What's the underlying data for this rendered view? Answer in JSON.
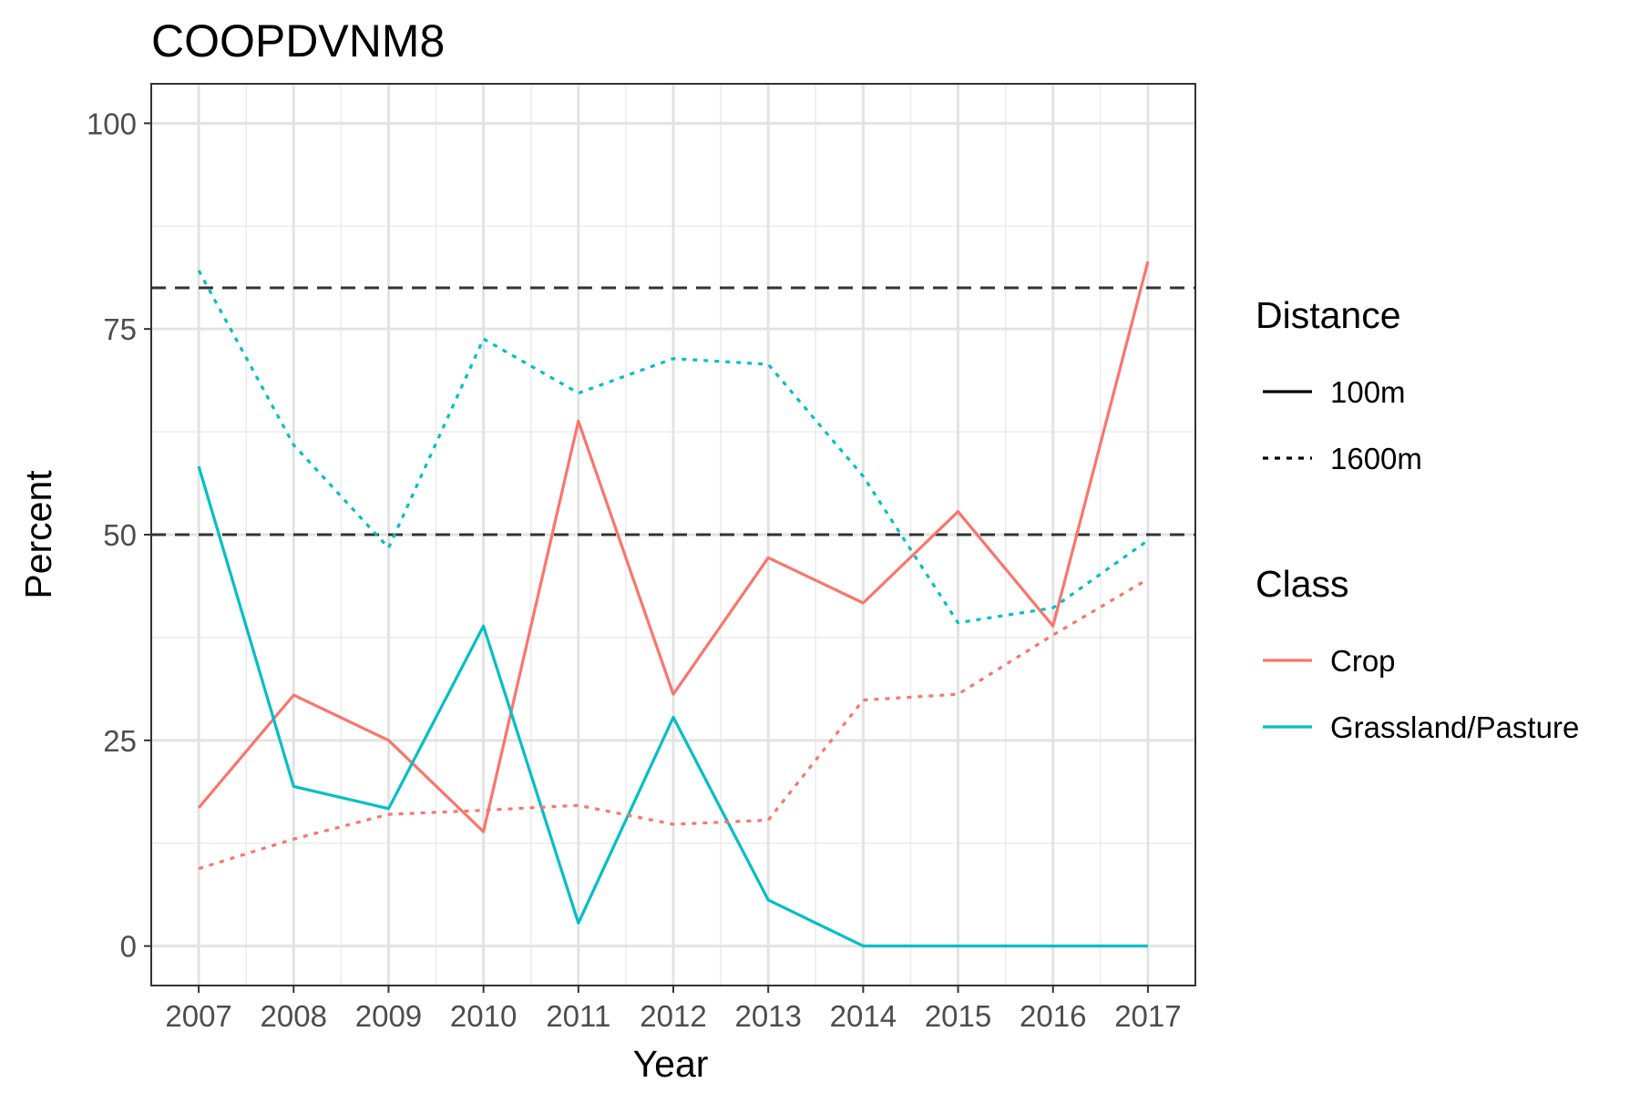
{
  "chart_data": {
    "type": "line",
    "title": "COOPDVNM8",
    "xlabel": "Year",
    "ylabel": "Percent",
    "x": [
      2007,
      2008,
      2009,
      2010,
      2011,
      2012,
      2013,
      2014,
      2015,
      2016,
      2017
    ],
    "y_ticks": [
      "0",
      "25",
      "50",
      "75",
      "100"
    ],
    "ylim": [
      -4.8,
      104.8
    ],
    "grid": true,
    "legend_position": "right",
    "reference_lines": [
      {
        "y": 50,
        "style": "dashed",
        "color": "#333333"
      },
      {
        "y": 80,
        "style": "dashed",
        "color": "#333333"
      }
    ],
    "legends": [
      {
        "title": "Distance",
        "entries": [
          {
            "label": "100m",
            "linetype": "solid"
          },
          {
            "label": "1600m",
            "linetype": "dotted"
          }
        ]
      },
      {
        "title": "Class",
        "entries": [
          {
            "label": "Crop",
            "color": "#F8766D"
          },
          {
            "label": "Grassland/Pasture",
            "color": "#00BFC4"
          }
        ]
      }
    ],
    "series": [
      {
        "class": "Crop",
        "distance": "100m",
        "color": "#F8766D",
        "linetype": "solid",
        "values": [
          16.8,
          30.5,
          25.0,
          13.9,
          63.8,
          30.6,
          47.2,
          41.7,
          52.8,
          38.9,
          83.2
        ]
      },
      {
        "class": "Grassland/Pasture",
        "distance": "100m",
        "color": "#00BFC4",
        "linetype": "solid",
        "values": [
          58.3,
          19.4,
          16.7,
          38.9,
          2.8,
          27.8,
          5.6,
          0.0,
          0.0,
          0.0,
          0.0
        ]
      },
      {
        "class": "Crop",
        "distance": "1600m",
        "color": "#F8766D",
        "linetype": "dotted",
        "values": [
          9.4,
          13.0,
          16.0,
          16.5,
          17.1,
          14.8,
          15.3,
          29.9,
          30.6,
          37.8,
          44.6
        ]
      },
      {
        "class": "Grassland/Pasture",
        "distance": "1600m",
        "color": "#00BFC4",
        "linetype": "dotted",
        "values": [
          82.1,
          60.9,
          48.4,
          73.8,
          67.2,
          71.4,
          70.7,
          57.1,
          39.3,
          41.1,
          49.3
        ]
      }
    ]
  }
}
